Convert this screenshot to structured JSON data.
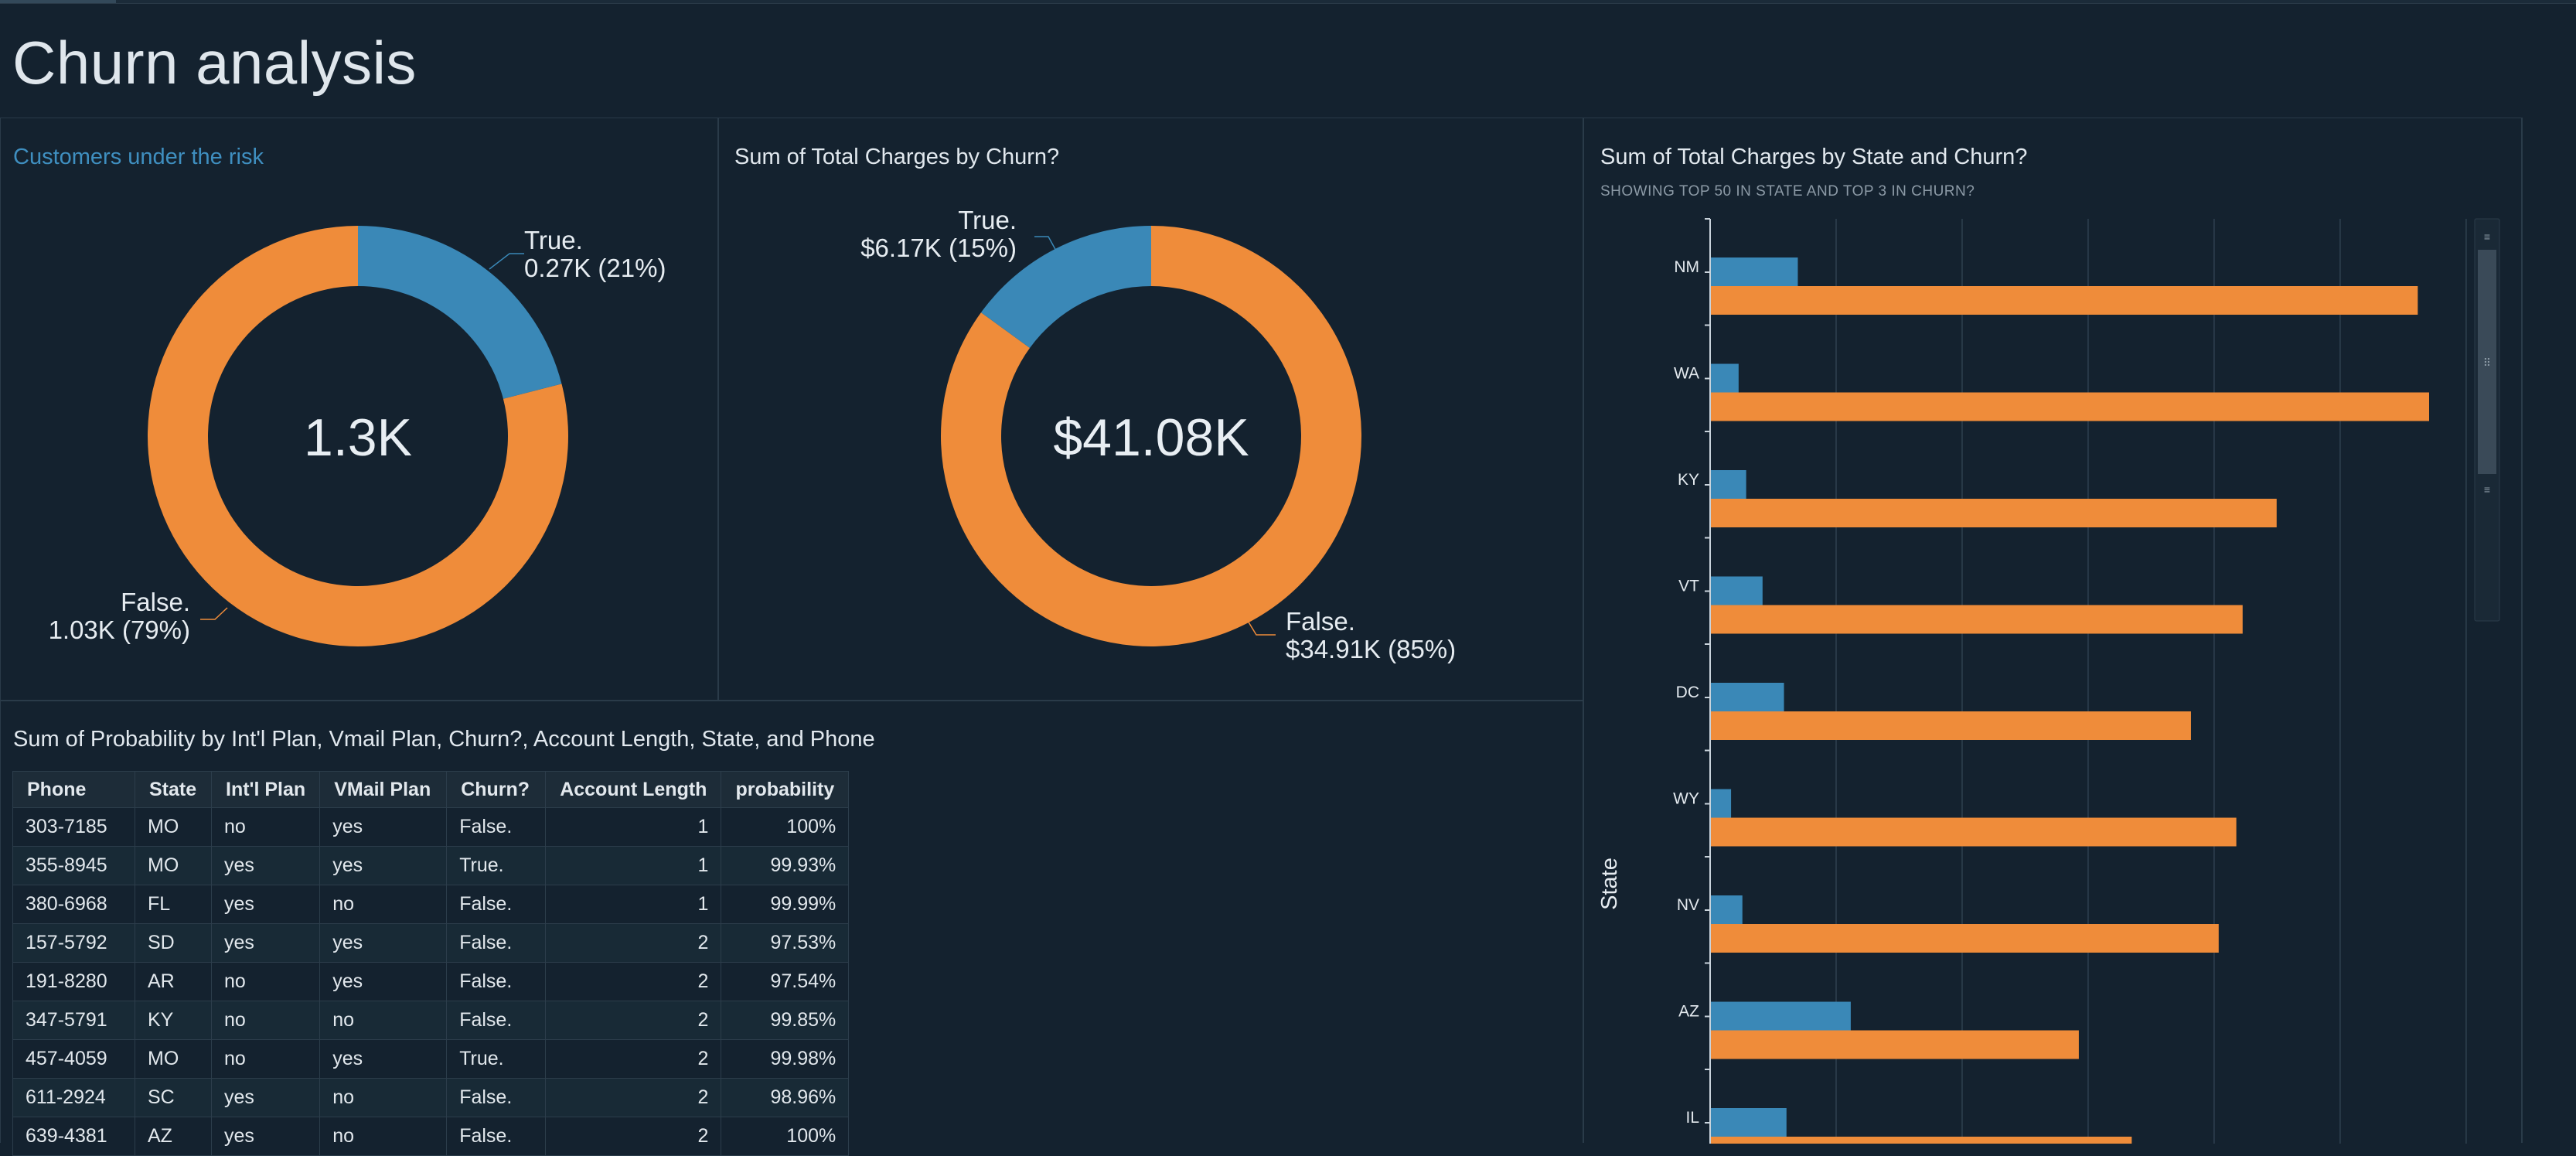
{
  "page": {
    "title": "Churn analysis"
  },
  "donut1": {
    "title": "Customers under the risk",
    "center": "1.3K",
    "true_label": "True.",
    "true_value": "0.27K (21%)",
    "false_label": "False.",
    "false_value": "1.03K (79%)",
    "true_fraction": 0.21
  },
  "donut2": {
    "title": "Sum of Total Charges by Churn?",
    "center": "$41.08K",
    "true_label": "True.",
    "true_value": "$6.17K (15%)",
    "false_label": "False.",
    "false_value": "$34.91K (85%)",
    "true_fraction": 0.15
  },
  "colors": {
    "true": "#3a88b7",
    "false": "#ef8c3a",
    "background": "#14222f"
  },
  "table": {
    "title": "Sum of Probability by Int'l Plan, Vmail Plan, Churn?, Account Length, State, and Phone",
    "columns": [
      "Phone",
      "State",
      "Int'l Plan",
      "VMail Plan",
      "Churn?",
      "Account Length",
      "probability"
    ],
    "rows": [
      [
        "303-7185",
        "MO",
        "no",
        "yes",
        "False.",
        "1",
        "100%"
      ],
      [
        "355-8945",
        "MO",
        "yes",
        "yes",
        "True.",
        "1",
        "99.93%"
      ],
      [
        "380-6968",
        "FL",
        "yes",
        "no",
        "False.",
        "1",
        "99.99%"
      ],
      [
        "157-5792",
        "SD",
        "yes",
        "yes",
        "False.",
        "2",
        "97.53%"
      ],
      [
        "191-8280",
        "AR",
        "no",
        "yes",
        "False.",
        "2",
        "97.54%"
      ],
      [
        "347-5791",
        "KY",
        "no",
        "no",
        "False.",
        "2",
        "99.85%"
      ],
      [
        "457-4059",
        "MO",
        "no",
        "yes",
        "True.",
        "2",
        "99.98%"
      ],
      [
        "611-2924",
        "SC",
        "yes",
        "no",
        "False.",
        "2",
        "98.96%"
      ],
      [
        "639-4381",
        "AZ",
        "yes",
        "no",
        "False.",
        "2",
        "100%"
      ]
    ]
  },
  "bar_chart": {
    "title": "Sum of Total Charges by State and Churn?",
    "subtitle": "SHOWING TOP 50 IN STATE AND TOP 3 IN CHURN?",
    "ylabel": "State"
  },
  "chart_data": {
    "type": "bar",
    "orientation": "horizontal",
    "categories": [
      "NM",
      "WA",
      "KY",
      "VT",
      "DC",
      "WY",
      "NV",
      "AZ",
      "IL"
    ],
    "series": [
      {
        "name": "True.",
        "values": [
          69,
          22,
          28,
          41,
          58,
          16,
          25,
          111,
          60
        ]
      },
      {
        "name": "False.",
        "values": [
          561,
          570,
          449,
          422,
          381,
          417,
          403,
          292,
          334
        ]
      }
    ],
    "xlim": [
      0,
      620
    ],
    "grid": true
  }
}
